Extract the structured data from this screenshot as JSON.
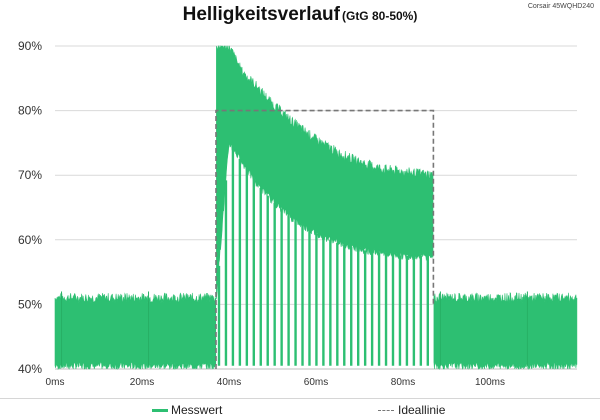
{
  "figure": {
    "title": "Helligkeitsverlauf",
    "subtitle": "(GtG 80-50%)",
    "source_label": "Corsair 45WQHD240"
  },
  "legend": {
    "items": [
      {
        "name": "Messwert",
        "style": "solid",
        "color": "#2dbf72"
      },
      {
        "name": "Ideallinie",
        "style": "dashed",
        "color": "#777777"
      }
    ]
  },
  "chart_data": {
    "type": "area",
    "title": "Helligkeitsverlauf",
    "subtitle": "(GtG 80-50%)",
    "xlabel": "",
    "ylabel": "",
    "xlim": [
      0,
      120
    ],
    "ylim": [
      40,
      90
    ],
    "x_ticks": [
      {
        "value": 0,
        "label": "0ms"
      },
      {
        "value": 20,
        "label": "20ms"
      },
      {
        "value": 40,
        "label": "40ms"
      },
      {
        "value": 60,
        "label": "60ms"
      },
      {
        "value": 80,
        "label": "80ms"
      },
      {
        "value": 100,
        "label": "100ms"
      }
    ],
    "y_ticks": [
      {
        "value": 40,
        "label": "40%"
      },
      {
        "value": 50,
        "label": "50%"
      },
      {
        "value": 60,
        "label": "60%"
      },
      {
        "value": 70,
        "label": "70%"
      },
      {
        "value": 80,
        "label": "80%"
      },
      {
        "value": 90,
        "label": "90%"
      }
    ],
    "grid": "horizontal",
    "legend_position": "bottom",
    "series": [
      {
        "name": "Messwert",
        "color": "#2dbf72",
        "kind": "band",
        "points": [
          {
            "x": 0,
            "low": 40.5,
            "high": 51
          },
          {
            "x": 37,
            "low": 40.5,
            "high": 51
          },
          {
            "x": 37.1,
            "low": 51,
            "high": 90
          },
          {
            "x": 40,
            "low": 75,
            "high": 90
          },
          {
            "x": 43,
            "low": 72,
            "high": 86
          },
          {
            "x": 46,
            "low": 69,
            "high": 84
          },
          {
            "x": 50,
            "low": 66,
            "high": 81
          },
          {
            "x": 55,
            "low": 63,
            "high": 78
          },
          {
            "x": 60,
            "low": 61,
            "high": 75.5
          },
          {
            "x": 65,
            "low": 59.5,
            "high": 73.5
          },
          {
            "x": 70,
            "low": 58.5,
            "high": 72
          },
          {
            "x": 75,
            "low": 58,
            "high": 71
          },
          {
            "x": 80,
            "low": 57.5,
            "high": 70.5
          },
          {
            "x": 87,
            "low": 57.5,
            "high": 70
          },
          {
            "x": 87.1,
            "low": 40.5,
            "high": 51
          },
          {
            "x": 120,
            "low": 40.5,
            "high": 51
          }
        ],
        "flicker_period_ms": 1.6,
        "flicker_floor": 40.5
      },
      {
        "name": "Ideallinie",
        "color": "#777777",
        "kind": "step",
        "dashed": true,
        "points": [
          {
            "x": 37,
            "y": 40
          },
          {
            "x": 37,
            "y": 80
          },
          {
            "x": 87,
            "y": 80
          },
          {
            "x": 87,
            "y": 50
          }
        ]
      }
    ]
  }
}
